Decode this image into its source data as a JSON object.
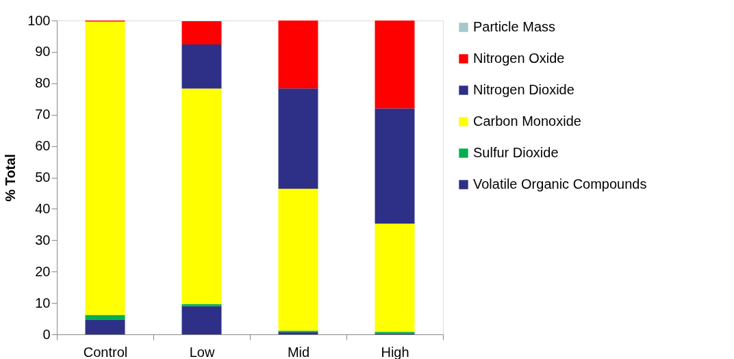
{
  "chart_data": {
    "type": "bar",
    "stacked": true,
    "ylabel": "% Total",
    "categories": [
      "Control",
      "Low",
      "Mid",
      "High"
    ],
    "ylim": [
      0,
      100
    ],
    "yticks": [
      0,
      10,
      20,
      30,
      40,
      50,
      60,
      70,
      80,
      90,
      100
    ],
    "grid": false,
    "legend": "right",
    "series": [
      {
        "name": "Volatile Organic Compounds",
        "color": "#2e3087",
        "values": [
          4.6,
          9.0,
          0.7,
          0.3
        ]
      },
      {
        "name": "Sulfur Dioxide",
        "color": "#00b050",
        "values": [
          1.6,
          0.7,
          0.5,
          0.5
        ]
      },
      {
        "name": "Carbon Monoxide",
        "color": "#ffff00",
        "values": [
          93.5,
          68.6,
          45.2,
          34.5
        ]
      },
      {
        "name": "Nitrogen Dioxide",
        "color": "#2e3087",
        "values": [
          0,
          14.1,
          32.0,
          36.7
        ]
      },
      {
        "name": "Nitrogen Oxide",
        "color": "#ff0000",
        "values": [
          0.3,
          7.4,
          21.6,
          28.0
        ]
      },
      {
        "name": "Particle Mass",
        "color": "#a5c8cc",
        "values": [
          0,
          null,
          0,
          0
        ]
      }
    ]
  }
}
